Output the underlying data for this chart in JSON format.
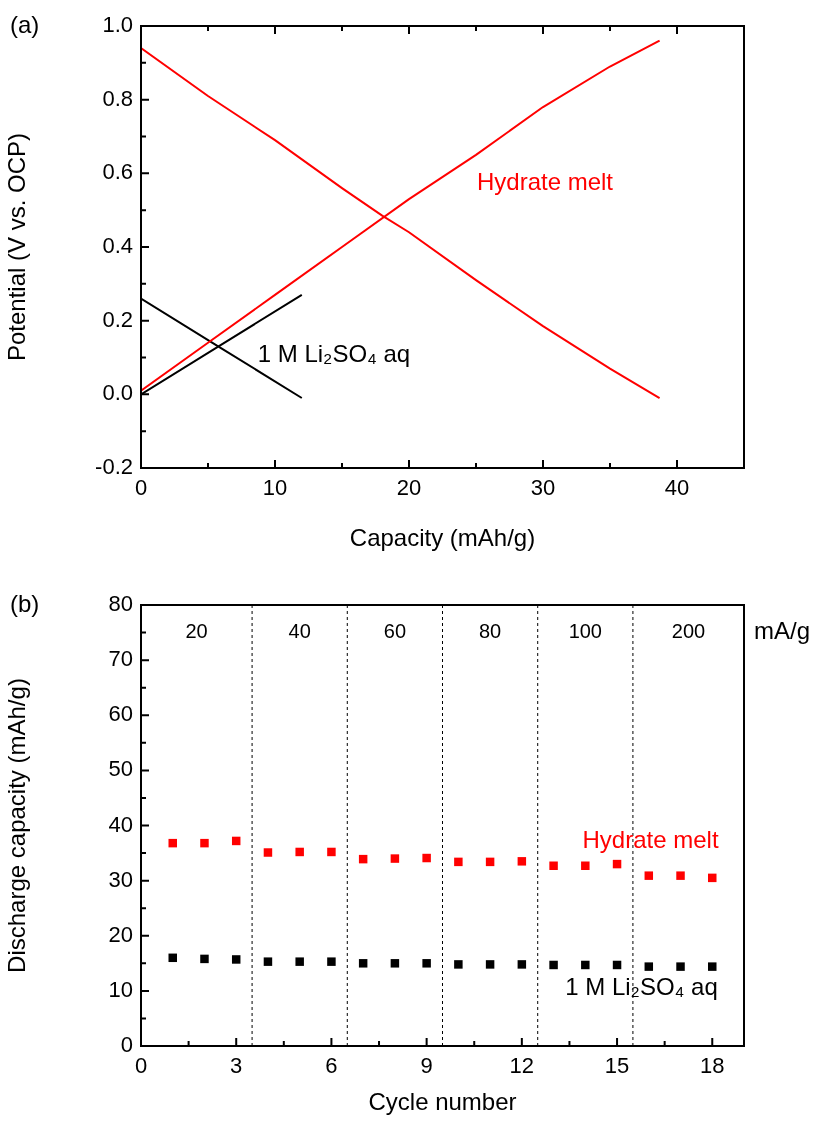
{
  "chart_data": [
    {
      "type": "line",
      "xlabel": "Capacity (mAh/g)",
      "ylabel": "Potential (V vs. OCP)",
      "marker": "none",
      "line_style": "solid",
      "grid": false,
      "legend": false,
      "xlim": [
        0,
        45
      ],
      "xticks": [
        0,
        {
          "value": 5,
          "label": null
        },
        10,
        {
          "value": 15,
          "label": null
        },
        20,
        {
          "value": 25,
          "label": null
        },
        30,
        {
          "value": 35,
          "label": null
        },
        40
      ],
      "ylim": [
        -0.2,
        1.0
      ],
      "yticks": [
        {
          "value": -0.2,
          "label": "-0.2"
        },
        {
          "value": -0.1,
          "label": null
        },
        {
          "value": 0,
          "label": "0.0"
        },
        {
          "value": 0.1,
          "label": null
        },
        {
          "value": 0.2,
          "label": "0.2"
        },
        {
          "value": 0.3,
          "label": null
        },
        {
          "value": 0.4,
          "label": "0.4"
        },
        {
          "value": 0.5,
          "label": null
        },
        {
          "value": 0.6,
          "label": "0.6"
        },
        {
          "value": 0.7,
          "label": null
        },
        {
          "value": 0.8,
          "label": "0.8"
        },
        {
          "value": 0.9,
          "label": null
        },
        {
          "value": 1.0,
          "label": "1.0"
        }
      ],
      "series": [
        {
          "name": "Hydrate melt",
          "color": "#ff0000",
          "x": [
            0,
            5,
            10,
            15,
            20,
            25,
            30,
            35,
            38.7,
            null,
            0,
            5,
            10,
            15,
            18,
            20,
            25,
            30,
            35,
            38.7
          ],
          "values": [
            0.01,
            0.14,
            0.27,
            0.4,
            0.53,
            0.65,
            0.78,
            0.89,
            0.96,
            null,
            0.94,
            0.81,
            0.69,
            0.56,
            0.485,
            0.44,
            0.31,
            0.185,
            0.07,
            -0.01
          ]
        },
        {
          "name": "1 M Li₂SO₄ aq",
          "color": "#000000",
          "x": [
            0,
            6,
            12,
            null,
            0,
            6,
            12
          ],
          "values": [
            0,
            0.135,
            0.27,
            null,
            0.26,
            0.125,
            -0.01
          ]
        }
      ],
      "annotations": [
        "(a)"
      ]
    },
    {
      "type": "scatter",
      "xlabel": "Cycle number",
      "ylabel": "Discharge capacity (mAh/g)",
      "marker": "square",
      "grid": false,
      "legend": false,
      "xlim": [
        0,
        19
      ],
      "xticks": [
        0,
        {
          "value": 1.5,
          "label": null
        },
        3,
        {
          "value": 4.5,
          "label": null
        },
        6,
        {
          "value": 7.5,
          "label": null
        },
        9,
        {
          "value": 10.5,
          "label": null
        },
        12,
        {
          "value": 13.5,
          "label": null
        },
        15,
        {
          "value": 16.5,
          "label": null
        },
        18
      ],
      "ylim": [
        0,
        80
      ],
      "yticks": [
        0,
        {
          "value": 5,
          "label": null
        },
        10,
        {
          "value": 15,
          "label": null
        },
        20,
        {
          "value": 25,
          "label": null
        },
        30,
        {
          "value": 35,
          "label": null
        },
        40,
        {
          "value": 45,
          "label": null
        },
        50,
        {
          "value": 55,
          "label": null
        },
        60,
        {
          "value": 65,
          "label": null
        },
        70,
        {
          "value": 75,
          "label": null
        },
        80
      ],
      "x": [
        1,
        2,
        3,
        4,
        5,
        6,
        7,
        8,
        9,
        10,
        11,
        12,
        13,
        14,
        15,
        16,
        17,
        18
      ],
      "series": [
        {
          "name": "Hydrate melt",
          "color": "#ff0000",
          "values": [
            36.8,
            36.8,
            37.2,
            35.1,
            35.2,
            35.2,
            33.9,
            34.0,
            34.1,
            33.4,
            33.4,
            33.5,
            32.7,
            32.7,
            33.0,
            30.9,
            30.9,
            30.5
          ]
        },
        {
          "name": "1 M Li₂SO₄ aq",
          "color": "#000000",
          "values": [
            16.0,
            15.8,
            15.7,
            15.3,
            15.3,
            15.3,
            15.0,
            15.0,
            15.0,
            14.8,
            14.8,
            14.8,
            14.7,
            14.7,
            14.7,
            14.4,
            14.4,
            14.4
          ]
        }
      ],
      "ref_lines": [
        {
          "axis": "x",
          "value": 3.5,
          "color": "#000000",
          "line_style": "dashed"
        },
        {
          "axis": "x",
          "value": 6.5,
          "color": "#000000",
          "line_style": "dashed"
        },
        {
          "axis": "x",
          "value": 9.5,
          "color": "#000000",
          "line_style": "dashed"
        },
        {
          "axis": "x",
          "value": 12.5,
          "color": "#000000",
          "line_style": "dashed"
        },
        {
          "axis": "x",
          "value": 15.5,
          "color": "#000000",
          "line_style": "dashed"
        }
      ],
      "annotations": [
        "(b)",
        "20",
        "40",
        "60",
        "80",
        "100",
        "200",
        "mA/g"
      ]
    }
  ]
}
